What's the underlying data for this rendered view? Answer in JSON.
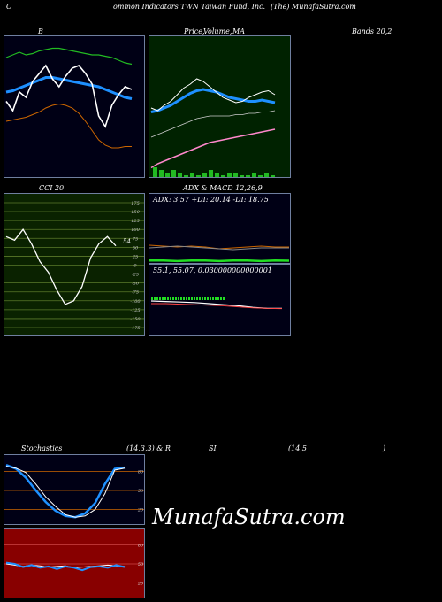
{
  "header": {
    "c": "C",
    "title": "ommon Indicators TWN  Taiwan Fund, Inc.",
    "source": "(The) MunafaSutra.com"
  },
  "row1": {
    "b": "B",
    "price_label": "Price,",
    "volume_label": "Volume,",
    "ma_label": "MA",
    "bands_label": "Bands 20,2"
  },
  "row2": {
    "cci_label": "CCI 20",
    "adx_label": "ADX  & MACD 12,26,9",
    "adx_values": "ADX: 3.57  +DI: 20.14  -DI: 18.75",
    "macd_values": "55.1,  55.07,  0.030000000000001",
    "cci_value": "54"
  },
  "row3": {
    "stoch_label": "Stochastics",
    "stoch_params": "(14,3,3) & R",
    "rsi_label": "SI",
    "rsi_params": "(14,5",
    "close_paren": ")"
  },
  "watermark": "MunafaSutra.com",
  "colors": {
    "dark_bg": "#000015",
    "green_bg": "#002200",
    "cci_bg": "#0a2200",
    "rsi_bg": "#880000",
    "blue": "#1e90ff",
    "orange": "#cc6600",
    "green_line": "#22bb22"
  },
  "chart_data": [
    {
      "type": "line",
      "panel": "bollinger",
      "ylim": [
        0,
        100
      ],
      "series": [
        {
          "values": [
            88,
            90,
            92,
            90,
            91,
            93,
            94,
            95,
            95,
            94,
            93,
            92,
            91,
            90,
            90,
            89,
            88,
            86,
            84,
            83
          ]
        },
        {
          "values": [
            62,
            63,
            65,
            67,
            69,
            71,
            73,
            73,
            72,
            71,
            70,
            69,
            68,
            67,
            66,
            64,
            62,
            60,
            58,
            57
          ]
        },
        {
          "values": [
            40,
            41,
            42,
            43,
            45,
            47,
            50,
            52,
            53,
            52,
            50,
            46,
            40,
            33,
            26,
            22,
            20,
            20,
            21,
            21
          ]
        },
        {
          "values": [
            55,
            48,
            62,
            58,
            70,
            76,
            82,
            72,
            66,
            74,
            80,
            82,
            76,
            68,
            44,
            36,
            52,
            60,
            66,
            64
          ]
        }
      ]
    },
    {
      "type": "line",
      "panel": "price-volume-ma",
      "ylim": [
        0,
        100
      ],
      "series": [
        {
          "values": [
            50,
            48,
            52,
            55,
            60,
            65,
            68,
            72,
            70,
            66,
            62,
            58,
            56,
            54,
            55,
            58,
            60,
            62,
            63,
            60
          ]
        },
        {
          "values": [
            47,
            48,
            50,
            52,
            55,
            58,
            61,
            63,
            64,
            63,
            62,
            60,
            58,
            57,
            56,
            55,
            55,
            56,
            55,
            54
          ]
        },
        {
          "values": [
            28,
            30,
            32,
            34,
            36,
            38,
            40,
            42,
            43,
            44,
            44,
            44,
            44,
            45,
            45,
            46,
            46,
            47,
            47,
            48
          ]
        },
        {
          "values": [
            5,
            8,
            10,
            12,
            14,
            16,
            18,
            20,
            22,
            24,
            25,
            26,
            27,
            28,
            29,
            30,
            31,
            32,
            33,
            34
          ]
        }
      ],
      "volume": [
        4,
        3,
        2,
        3,
        2,
        1,
        2,
        1,
        2,
        3,
        2,
        1,
        2,
        2,
        1,
        1,
        2,
        1,
        2,
        1
      ]
    },
    {
      "type": "line",
      "panel": "cci",
      "ylim": [
        -175,
        175
      ],
      "series": [
        {
          "values": [
            80,
            70,
            100,
            60,
            10,
            -20,
            -70,
            -110,
            -100,
            -60,
            20,
            60,
            80,
            54
          ]
        }
      ]
    },
    {
      "type": "line",
      "panel": "adx",
      "ylim": [
        0,
        40
      ],
      "series": [
        {
          "values": [
            22,
            21,
            20,
            21,
            20,
            18,
            19,
            20,
            21,
            20,
            20
          ]
        },
        {
          "values": [
            19,
            20,
            21,
            20,
            19,
            18,
            17,
            18,
            19,
            19,
            19
          ]
        },
        {
          "values": [
            4,
            4,
            3,
            4,
            4,
            3,
            4,
            4,
            3,
            4,
            3.57
          ]
        }
      ]
    },
    {
      "type": "line",
      "panel": "macd",
      "ylim": [
        50,
        60
      ],
      "series": [
        {
          "values": [
            56.5,
            56.4,
            56.3,
            56.2,
            56.0,
            55.8,
            55.6,
            55.3,
            55.1,
            55.1
          ]
        },
        {
          "values": [
            56.0,
            56.0,
            55.9,
            55.8,
            55.7,
            55.6,
            55.4,
            55.2,
            55.1,
            55.07
          ]
        }
      ]
    },
    {
      "type": "line",
      "panel": "stochastics",
      "ylim": [
        0,
        100
      ],
      "series": [
        {
          "values": [
            88,
            85,
            78,
            60,
            40,
            25,
            12,
            8,
            10,
            20,
            45,
            82,
            85
          ]
        },
        {
          "values": [
            90,
            84,
            70,
            50,
            32,
            18,
            10,
            8,
            14,
            30,
            60,
            84,
            86
          ]
        }
      ]
    },
    {
      "type": "line",
      "panel": "rsi",
      "ylim": [
        0,
        100
      ],
      "series": [
        {
          "values": [
            50,
            48,
            46,
            48,
            47,
            45,
            46,
            47,
            44,
            45,
            46,
            47,
            48,
            47,
            46
          ]
        },
        {
          "values": [
            52,
            50,
            45,
            48,
            44,
            46,
            42,
            46,
            44,
            40,
            45,
            46,
            44,
            48,
            45
          ]
        }
      ]
    }
  ]
}
